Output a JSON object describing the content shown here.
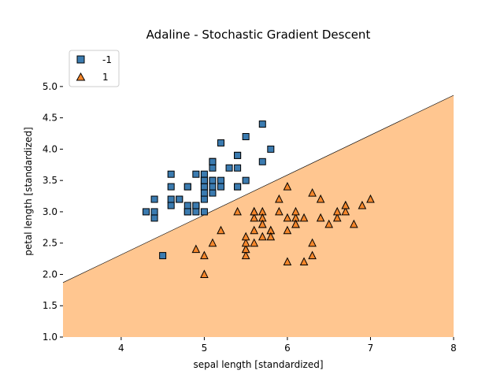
{
  "chart_data": {
    "type": "scatter",
    "title": "Adaline - Stochastic Gradient Descent",
    "xlabel": "sepal length [standardized]",
    "ylabel": "petal length [standardized]",
    "xlim": [
      3.3,
      8.0
    ],
    "ylim": [
      1.0,
      5.3
    ],
    "x_ticks": [
      4,
      5,
      6,
      7,
      8
    ],
    "y_ticks": [
      1.0,
      1.5,
      2.0,
      2.5,
      3.0,
      3.5,
      4.0,
      4.5,
      5.0
    ],
    "x_tick_labels": [
      "4",
      "5",
      "6",
      "7",
      "8"
    ],
    "y_tick_labels": [
      "1.0",
      "1.5",
      "2.0",
      "2.5",
      "3.0",
      "3.5",
      "4.0",
      "4.5",
      "5.0"
    ],
    "legend_position": "top-left",
    "decision_boundary": {
      "x": [
        3.3,
        8.0
      ],
      "y": [
        1.87,
        4.86
      ],
      "region_above_class": "-1",
      "region_below_class": "1",
      "region_below_color": "#ffc690",
      "region_above_color": "#ffffff"
    },
    "series": [
      {
        "name": "-1",
        "marker": "square",
        "color": "#3b7bb0",
        "points": [
          [
            5.1,
            3.5
          ],
          [
            4.9,
            3.0
          ],
          [
            4.7,
            3.2
          ],
          [
            4.6,
            3.1
          ],
          [
            5.0,
            3.6
          ],
          [
            5.4,
            3.9
          ],
          [
            4.6,
            3.4
          ],
          [
            5.0,
            3.4
          ],
          [
            4.4,
            2.9
          ],
          [
            4.9,
            3.1
          ],
          [
            5.4,
            3.7
          ],
          [
            4.8,
            3.4
          ],
          [
            4.8,
            3.0
          ],
          [
            4.3,
            3.0
          ],
          [
            5.8,
            4.0
          ],
          [
            5.7,
            4.4
          ],
          [
            5.4,
            3.9
          ],
          [
            5.1,
            3.5
          ],
          [
            5.7,
            3.8
          ],
          [
            5.1,
            3.8
          ],
          [
            5.4,
            3.4
          ],
          [
            5.1,
            3.7
          ],
          [
            4.6,
            3.6
          ],
          [
            5.1,
            3.3
          ],
          [
            4.8,
            3.4
          ],
          [
            5.0,
            3.0
          ],
          [
            5.0,
            3.4
          ],
          [
            5.2,
            3.5
          ],
          [
            5.2,
            3.4
          ],
          [
            4.7,
            3.2
          ],
          [
            4.8,
            3.1
          ],
          [
            5.4,
            3.4
          ],
          [
            5.2,
            4.1
          ],
          [
            5.5,
            4.2
          ],
          [
            4.9,
            3.1
          ],
          [
            5.0,
            3.2
          ],
          [
            5.5,
            3.5
          ],
          [
            4.9,
            3.6
          ],
          [
            4.4,
            3.0
          ],
          [
            5.1,
            3.4
          ],
          [
            5.0,
            3.5
          ],
          [
            4.5,
            2.3
          ],
          [
            4.4,
            3.2
          ],
          [
            5.0,
            3.5
          ],
          [
            5.1,
            3.8
          ],
          [
            4.8,
            3.0
          ],
          [
            5.1,
            3.8
          ],
          [
            4.6,
            3.2
          ],
          [
            5.3,
            3.7
          ],
          [
            5.0,
            3.3
          ]
        ]
      },
      {
        "name": "1",
        "marker": "triangle",
        "color": "#f5862a",
        "points": [
          [
            7.0,
            3.2
          ],
          [
            6.4,
            3.2
          ],
          [
            6.9,
            3.1
          ],
          [
            5.5,
            2.3
          ],
          [
            6.5,
            2.8
          ],
          [
            5.7,
            2.8
          ],
          [
            6.3,
            3.3
          ],
          [
            4.9,
            2.4
          ],
          [
            6.6,
            2.9
          ],
          [
            5.2,
            2.7
          ],
          [
            5.0,
            2.0
          ],
          [
            5.9,
            3.0
          ],
          [
            6.0,
            2.2
          ],
          [
            6.1,
            2.9
          ],
          [
            5.6,
            2.9
          ],
          [
            6.7,
            3.1
          ],
          [
            5.6,
            3.0
          ],
          [
            5.8,
            2.7
          ],
          [
            6.2,
            2.2
          ],
          [
            5.6,
            2.5
          ],
          [
            5.9,
            3.2
          ],
          [
            6.1,
            2.8
          ],
          [
            6.3,
            2.5
          ],
          [
            6.1,
            2.8
          ],
          [
            6.4,
            2.9
          ],
          [
            6.6,
            3.0
          ],
          [
            6.8,
            2.8
          ],
          [
            6.7,
            3.0
          ],
          [
            6.0,
            2.9
          ],
          [
            5.7,
            2.6
          ],
          [
            5.5,
            2.4
          ],
          [
            5.5,
            2.4
          ],
          [
            5.8,
            2.7
          ],
          [
            6.0,
            2.7
          ],
          [
            5.4,
            3.0
          ],
          [
            6.0,
            3.4
          ],
          [
            6.7,
            3.1
          ],
          [
            6.3,
            2.3
          ],
          [
            5.6,
            3.0
          ],
          [
            5.5,
            2.5
          ],
          [
            5.5,
            2.6
          ],
          [
            6.1,
            3.0
          ],
          [
            5.8,
            2.6
          ],
          [
            5.0,
            2.3
          ],
          [
            5.6,
            2.7
          ],
          [
            5.7,
            3.0
          ],
          [
            5.7,
            2.9
          ],
          [
            6.2,
            2.9
          ],
          [
            5.1,
            2.5
          ],
          [
            5.7,
            2.8
          ]
        ]
      }
    ]
  }
}
